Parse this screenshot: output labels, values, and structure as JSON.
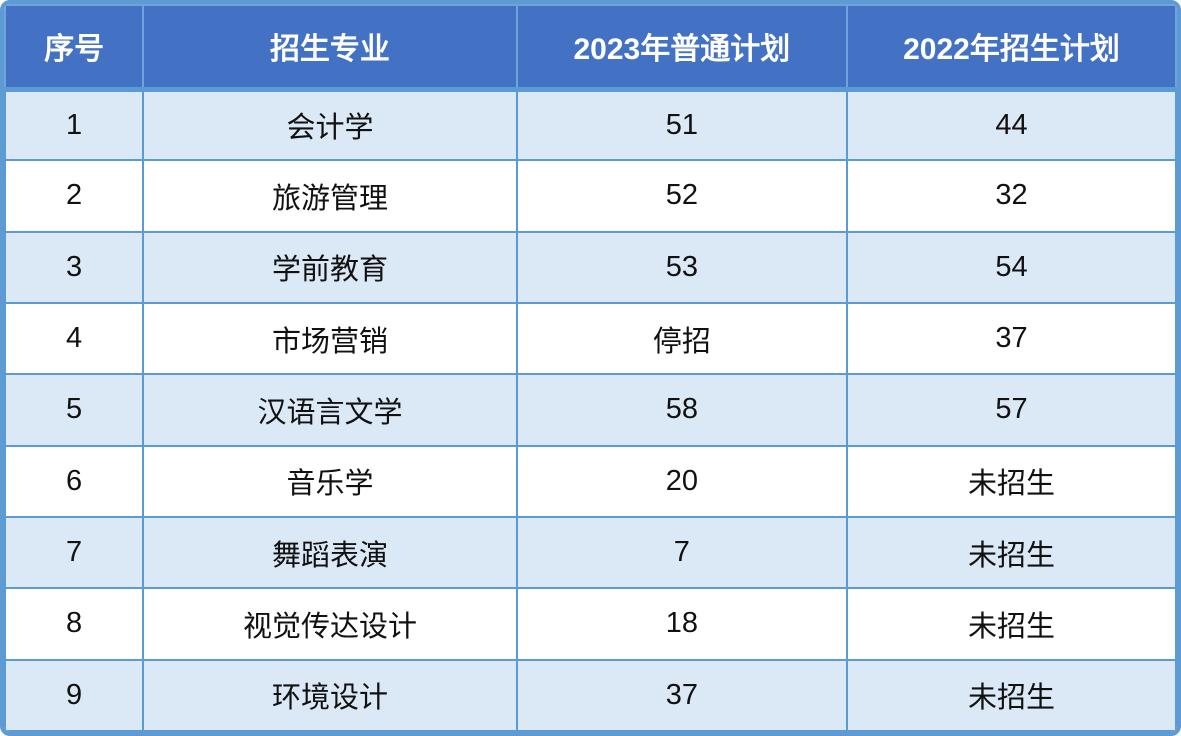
{
  "chart_data": {
    "type": "table",
    "columns": [
      "序号",
      "招生专业",
      "2023年普通计划",
      "2022年招生计划"
    ],
    "rows": [
      [
        "1",
        "会计学",
        "51",
        "44"
      ],
      [
        "2",
        "旅游管理",
        "52",
        "32"
      ],
      [
        "3",
        "学前教育",
        "53",
        "54"
      ],
      [
        "4",
        "市场营销",
        "停招",
        "37"
      ],
      [
        "5",
        "汉语言文学",
        "58",
        "57"
      ],
      [
        "6",
        "音乐学",
        "20",
        "未招生"
      ],
      [
        "7",
        "舞蹈表演",
        "7",
        "未招生"
      ],
      [
        "8",
        "视觉传达设计",
        "18",
        "未招生"
      ],
      [
        "9",
        "环境设计",
        "37",
        "未招生"
      ]
    ],
    "layout": {
      "column_widths_pct": [
        11.8,
        31.9,
        28.2,
        28.1
      ],
      "header_row": "dark-blue with white bold text",
      "body_rows": "alternating light-blue and white, starting light-blue"
    }
  },
  "colors": {
    "header_bg": "#4372C4",
    "header_text": "#FFFFFF",
    "row_alt_bg": "#DBE8F5",
    "row_bg": "#FFFFFF",
    "border_color": "#5B9BD5",
    "outer_border": "#5E9BD3",
    "body_text": "#111111"
  }
}
